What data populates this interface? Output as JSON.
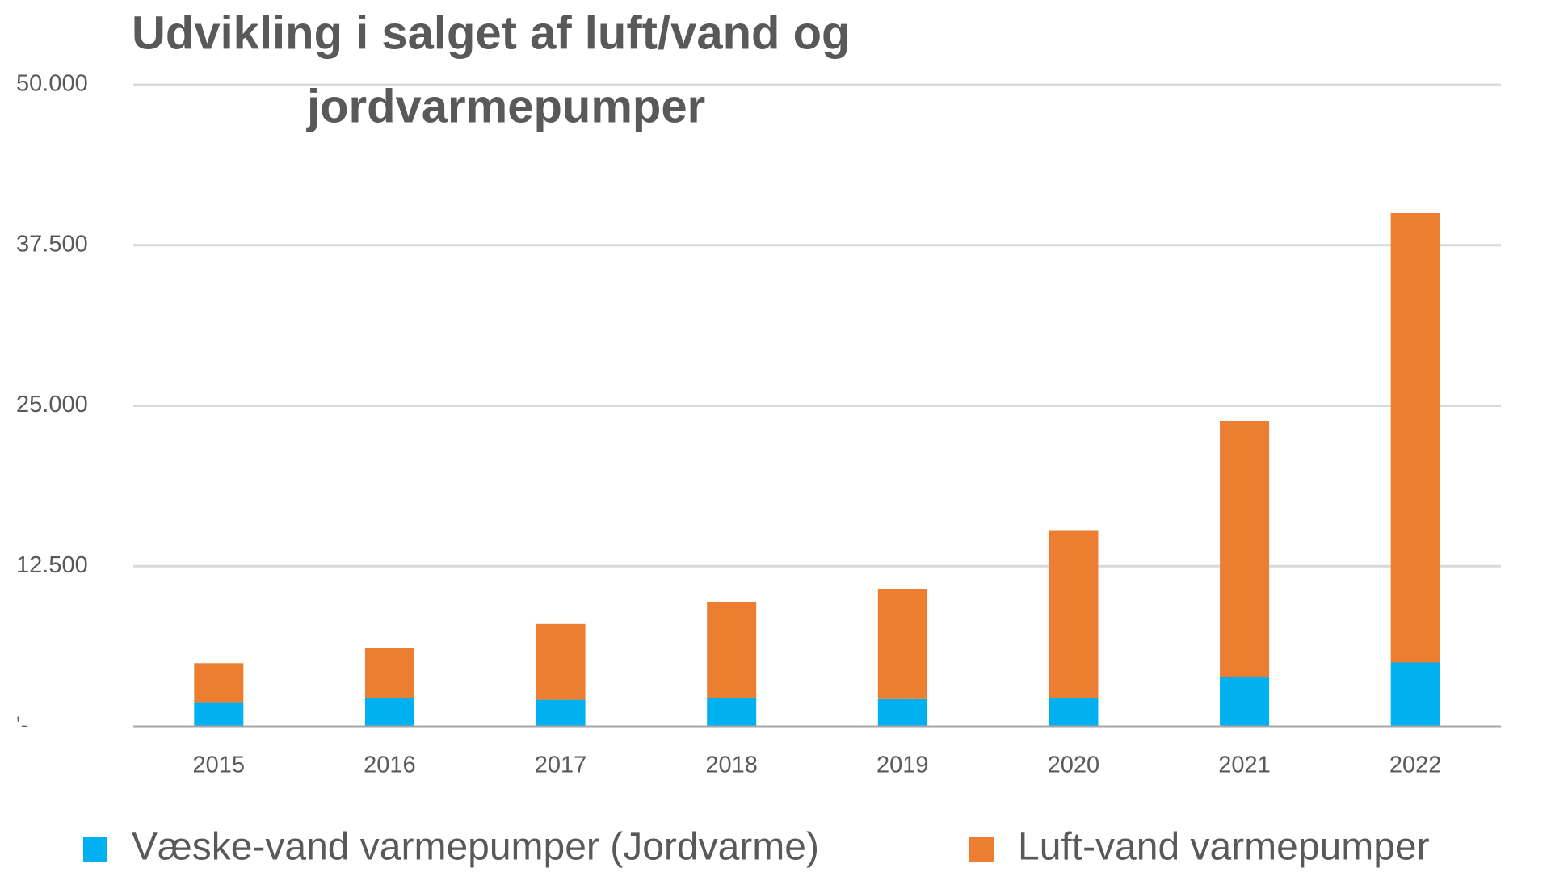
{
  "chart_data": {
    "type": "stacked-bar",
    "title": [
      "Udvikling i salget af luft/vand og",
      "jordvarmepumper"
    ],
    "categories": [
      "2015",
      "2016",
      "2017",
      "2018",
      "2019",
      "2020",
      "2021",
      "2022"
    ],
    "series": [
      {
        "name": "Væske-vand varmepumper (Jordvarme)",
        "color": "#00b0f0",
        "values": [
          1850,
          2250,
          2100,
          2250,
          2150,
          2250,
          3900,
          5000
        ]
      },
      {
        "name": "Luft-vand varmepumper",
        "color": "#ed7d31",
        "values": [
          3100,
          3900,
          5900,
          7500,
          8600,
          13000,
          19900,
          35000
        ]
      }
    ],
    "ylim": [
      0,
      50000
    ],
    "yticks": [
      {
        "value": 0,
        "label": "'-"
      },
      {
        "value": 12500,
        "label": "12.500"
      },
      {
        "value": 25000,
        "label": "25.000"
      },
      {
        "value": 37500,
        "label": "37.500"
      },
      {
        "value": 50000,
        "label": "50.000"
      }
    ],
    "grid": true
  }
}
